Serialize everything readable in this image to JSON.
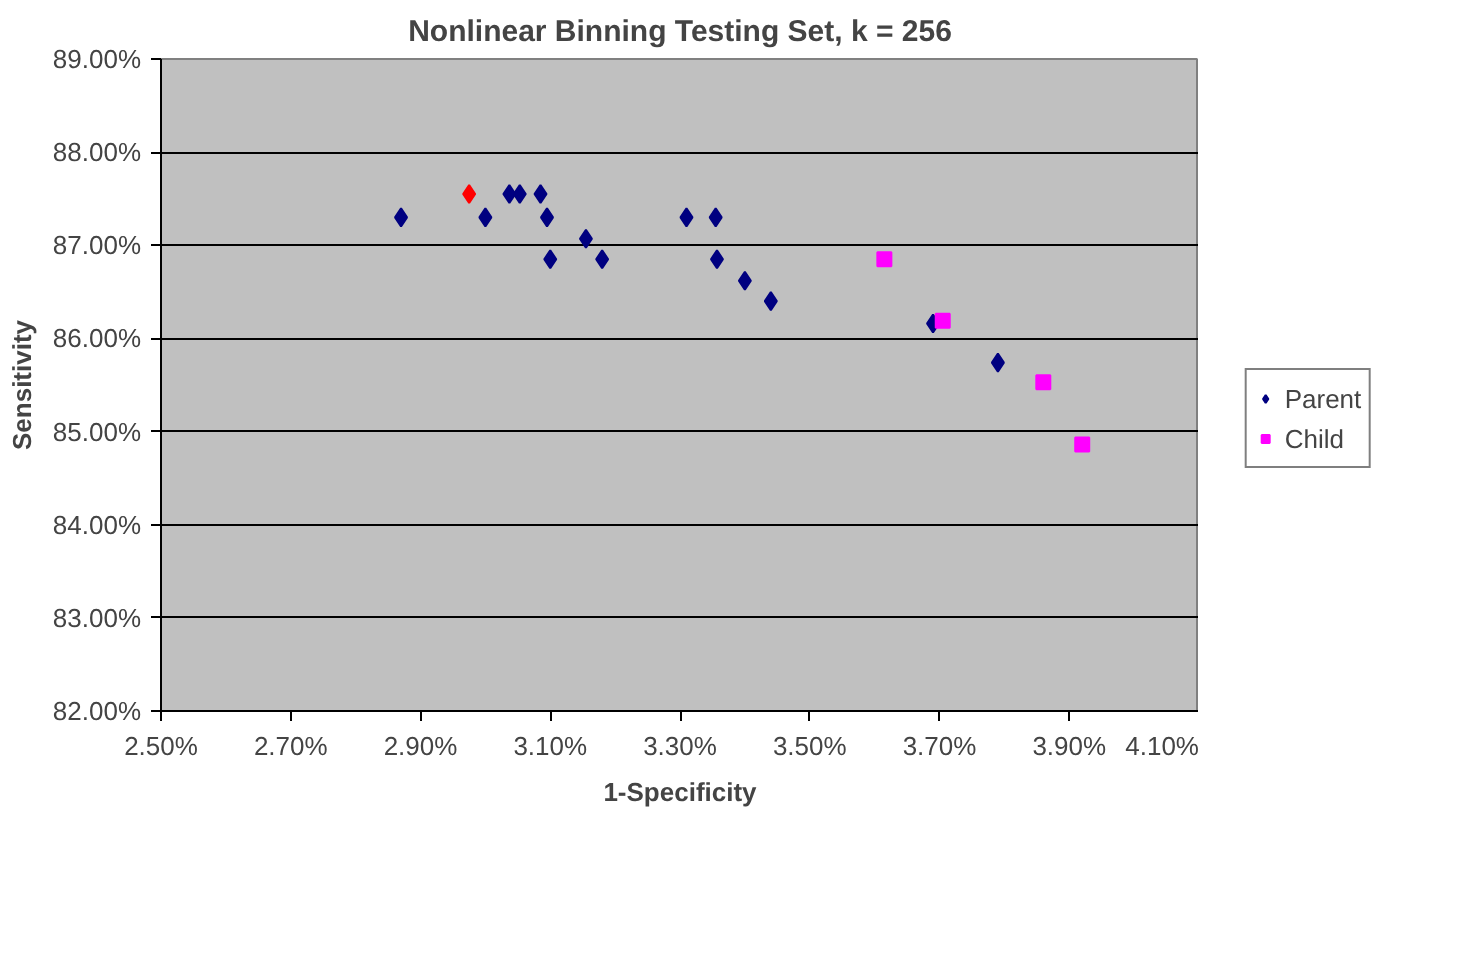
{
  "chart_data": {
    "type": "scatter",
    "title": "Nonlinear Binning Testing Set, k = 256",
    "xlabel": "1-Specificity",
    "ylabel": "Sensitivity",
    "xlim": [
      2.5,
      4.1
    ],
    "ylim": [
      82,
      89
    ],
    "xticks": [
      {
        "value": 2.5,
        "label": "2.50%"
      },
      {
        "value": 2.7,
        "label": "2.70%"
      },
      {
        "value": 2.9,
        "label": "2.90%"
      },
      {
        "value": 3.1,
        "label": "3.10%"
      },
      {
        "value": 3.3,
        "label": "3.30%"
      },
      {
        "value": 3.5,
        "label": "3.50%"
      },
      {
        "value": 3.7,
        "label": "3.70%"
      },
      {
        "value": 3.9,
        "label": "3.90%"
      },
      {
        "value": 4.1,
        "label": "4.10%"
      }
    ],
    "yticks": [
      {
        "value": 82,
        "label": "82.00%"
      },
      {
        "value": 83,
        "label": "83.00%"
      },
      {
        "value": 84,
        "label": "84.00%"
      },
      {
        "value": 85,
        "label": "85.00%"
      },
      {
        "value": 86,
        "label": "86.00%"
      },
      {
        "value": 87,
        "label": "87.00%"
      },
      {
        "value": 88,
        "label": "88.00%"
      },
      {
        "value": 89,
        "label": "89.00%"
      }
    ],
    "grid": "y",
    "legend": "right",
    "series": [
      {
        "name": "Parent",
        "color": "#000080",
        "marker": "diamond",
        "x": [
          2.87,
          3.0,
          3.037,
          3.053,
          3.085,
          3.095,
          3.155,
          3.1,
          3.18,
          3.31,
          3.355,
          3.357,
          3.4,
          3.44,
          3.69,
          3.79
        ],
        "values": [
          87.3,
          87.3,
          87.55,
          87.55,
          87.55,
          87.3,
          87.07,
          86.85,
          86.85,
          87.3,
          87.3,
          86.85,
          86.62,
          86.4,
          86.16,
          85.74
        ]
      },
      {
        "name": "Child",
        "color": "#ff00ff",
        "marker": "square",
        "x": [
          3.615,
          3.705,
          3.86,
          3.92
        ],
        "values": [
          86.85,
          86.19,
          85.53,
          84.86
        ]
      },
      {
        "color": "#ff0000",
        "marker": "diamond",
        "x": [
          2.975
        ],
        "values": [
          87.55
        ]
      }
    ]
  }
}
